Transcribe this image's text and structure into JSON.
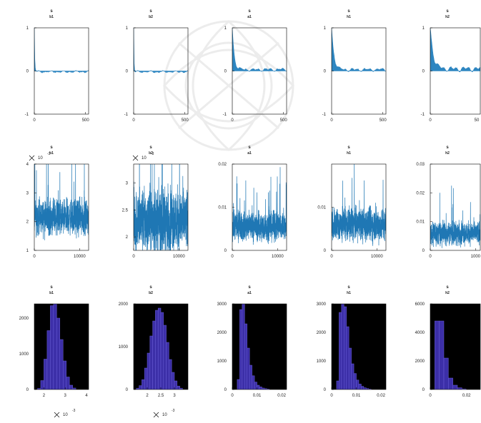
{
  "chart_data": [
    {
      "type": "area",
      "kind": "acf",
      "title": "s",
      "subtitle": "b1",
      "xlim": [
        0,
        530
      ],
      "ylim": [
        -1,
        1
      ],
      "xticks": [
        "0",
        "500"
      ],
      "yticks": [
        "-1",
        "0",
        "1"
      ],
      "color": "#2e86c1",
      "lag_decay": 4,
      "fill_level": -0.03
    },
    {
      "type": "area",
      "kind": "acf",
      "title": "s",
      "subtitle": "b2",
      "xlim": [
        0,
        530
      ],
      "ylim": [
        -1,
        1
      ],
      "xticks": [
        "0",
        "500"
      ],
      "yticks": [
        "-1",
        "0",
        "1"
      ],
      "color": "#2e86c1",
      "lag_decay": 3,
      "fill_level": -0.03
    },
    {
      "type": "area",
      "kind": "acf",
      "title": "s",
      "subtitle": "a1",
      "xlim": [
        0,
        530
      ],
      "ylim": [
        -1,
        1
      ],
      "xticks": [
        "0",
        "500"
      ],
      "yticks": [
        "-1",
        "0",
        "1"
      ],
      "color": "#2e86c1",
      "lag_decay": 18,
      "fill_level": 0.05
    },
    {
      "type": "area",
      "kind": "acf",
      "title": "s",
      "subtitle": "h1",
      "xlim": [
        0,
        530
      ],
      "ylim": [
        -1,
        1
      ],
      "xticks": [
        "0",
        "500"
      ],
      "yticks": [
        "-1",
        "0",
        "1"
      ],
      "color": "#2e86c1",
      "lag_decay": 22,
      "fill_level": 0.05
    },
    {
      "type": "area",
      "kind": "acf",
      "title": "s",
      "subtitle": "h2",
      "xlim": [
        0,
        530
      ],
      "ylim": [
        -1,
        1
      ],
      "xticks": [
        "0",
        "50"
      ],
      "yticks": [
        "-1",
        "0",
        "1"
      ],
      "color": "#2e86c1",
      "lag_decay": 28,
      "fill_level": 0.08
    },
    {
      "type": "line",
      "kind": "trace",
      "title": "s",
      "subtitle": "b1",
      "xlim": [
        0,
        12000
      ],
      "ylim": [
        1,
        4
      ],
      "xticks": [
        "0",
        "10000"
      ],
      "yticks": [
        "1",
        "2",
        "3",
        "4"
      ],
      "exponent": "10",
      "exponent_power": "-3",
      "color": "#1f77b4",
      "mean": 2.15,
      "spread": 0.45
    },
    {
      "type": "line",
      "kind": "trace",
      "title": "s",
      "subtitle": "b2",
      "xlim": [
        0,
        12000
      ],
      "ylim": [
        1.75,
        3.35
      ],
      "xticks": [
        "0",
        "10000"
      ],
      "yticks": [
        "2",
        "2.5",
        "3"
      ],
      "exponent": "10",
      "exponent_power": "-3",
      "color": "#1f77b4",
      "mean": 2.3,
      "spread": 0.45
    },
    {
      "type": "line",
      "kind": "trace",
      "title": "s",
      "subtitle": "a1",
      "xlim": [
        0,
        12000
      ],
      "ylim": [
        0,
        0.02
      ],
      "xticks": [
        "0",
        "10000"
      ],
      "yticks": [
        "0",
        "0.01",
        "0.02"
      ],
      "color": "#1f77b4",
      "mean": 0.0055,
      "spread": 0.0025
    },
    {
      "type": "line",
      "kind": "trace",
      "title": "s",
      "subtitle": "h1",
      "xlim": [
        0,
        12000
      ],
      "ylim": [
        0,
        0.02
      ],
      "xticks": [
        "0",
        "10000"
      ],
      "yticks": [
        "0",
        "0.01"
      ],
      "color": "#1f77b4",
      "mean": 0.006,
      "spread": 0.003
    },
    {
      "type": "line",
      "kind": "trace",
      "title": "s",
      "subtitle": "h2",
      "xlim": [
        0,
        12000
      ],
      "ylim": [
        0,
        0.03
      ],
      "xticks": [
        "0",
        "1000"
      ],
      "yticks": [
        "0",
        "0.01",
        "0.02",
        "0.03"
      ],
      "color": "#1f77b4",
      "mean": 0.006,
      "spread": 0.003
    },
    {
      "type": "bar",
      "kind": "histogram",
      "title": "s",
      "subtitle": "b1",
      "xlim": [
        1.55,
        4.1
      ],
      "ylim": [
        0,
        2400
      ],
      "xticks": [
        "2",
        "3",
        "4"
      ],
      "yticks": [
        "0",
        "1000",
        "2000"
      ],
      "exponent": "10",
      "exponent_power": "-3",
      "bar_color": "#3c2fa8",
      "bin_edges": [
        1.7,
        1.85,
        2.0,
        2.15,
        2.3,
        2.45,
        2.6,
        2.75,
        2.9,
        3.05,
        3.2,
        3.35,
        3.5
      ],
      "values": [
        30,
        250,
        850,
        1650,
        2350,
        2650,
        2000,
        1400,
        800,
        350,
        120,
        40
      ]
    },
    {
      "type": "bar",
      "kind": "histogram",
      "title": "s",
      "subtitle": "b2",
      "xlim": [
        1.5,
        3.5
      ],
      "ylim": [
        0,
        2000
      ],
      "xticks": [
        "2",
        "2.5",
        "3"
      ],
      "yticks": [
        "0",
        "1000",
        "2000"
      ],
      "exponent": "10",
      "exponent_power": "-3",
      "bar_color": "#3c2fa8",
      "bin_edges": [
        1.6,
        1.7,
        1.8,
        1.9,
        2.0,
        2.1,
        2.2,
        2.3,
        2.4,
        2.5,
        2.6,
        2.7,
        2.8,
        2.9,
        3.0,
        3.1,
        3.2,
        3.3
      ],
      "values": [
        30,
        90,
        230,
        500,
        850,
        1250,
        1600,
        1850,
        1900,
        1800,
        1500,
        1100,
        700,
        400,
        200,
        80,
        30
      ]
    },
    {
      "type": "bar",
      "kind": "histogram",
      "title": "s",
      "subtitle": "a1",
      "xlim": [
        0,
        0.022
      ],
      "ylim": [
        0,
        3000
      ],
      "xticks": [
        "0",
        "0.01",
        "0.02"
      ],
      "yticks": [
        "0",
        "1000",
        "2000",
        "3000"
      ],
      "bar_color": "#3c2fa8",
      "bin_edges": [
        0.002,
        0.003,
        0.004,
        0.005,
        0.006,
        0.007,
        0.008,
        0.009,
        0.01,
        0.011,
        0.012,
        0.013,
        0.014,
        0.015
      ],
      "values": [
        350,
        2800,
        3000,
        2300,
        1450,
        850,
        480,
        260,
        150,
        90,
        50,
        30,
        15
      ]
    },
    {
      "type": "bar",
      "kind": "histogram",
      "title": "s",
      "subtitle": "h1",
      "xlim": [
        0,
        0.022
      ],
      "ylim": [
        0,
        3000
      ],
      "xticks": [
        "0",
        "0.01",
        "0.02"
      ],
      "yticks": [
        "0",
        "1000",
        "2000",
        "3000"
      ],
      "bar_color": "#3c2fa8",
      "bin_edges": [
        0.002,
        0.003,
        0.004,
        0.005,
        0.006,
        0.007,
        0.008,
        0.009,
        0.01,
        0.011,
        0.012,
        0.013,
        0.014,
        0.015,
        0.016
      ],
      "values": [
        300,
        2700,
        3200,
        2900,
        2200,
        1450,
        900,
        560,
        330,
        190,
        110,
        60,
        35,
        15
      ]
    },
    {
      "type": "bar",
      "kind": "histogram",
      "title": "s",
      "subtitle": "h2",
      "xlim": [
        0,
        0.03
      ],
      "ylim": [
        0,
        6000
      ],
      "xticks": [
        "0",
        "0.02"
      ],
      "yticks": [
        "0",
        "2000",
        "4000",
        "6000"
      ],
      "bar_color": "#3c2fa8",
      "bin_edges": [
        0.0025,
        0.005,
        0.0075,
        0.01,
        0.0125,
        0.015,
        0.0175,
        0.02
      ],
      "values": [
        4800,
        4800,
        2200,
        800,
        300,
        120,
        40
      ]
    }
  ]
}
